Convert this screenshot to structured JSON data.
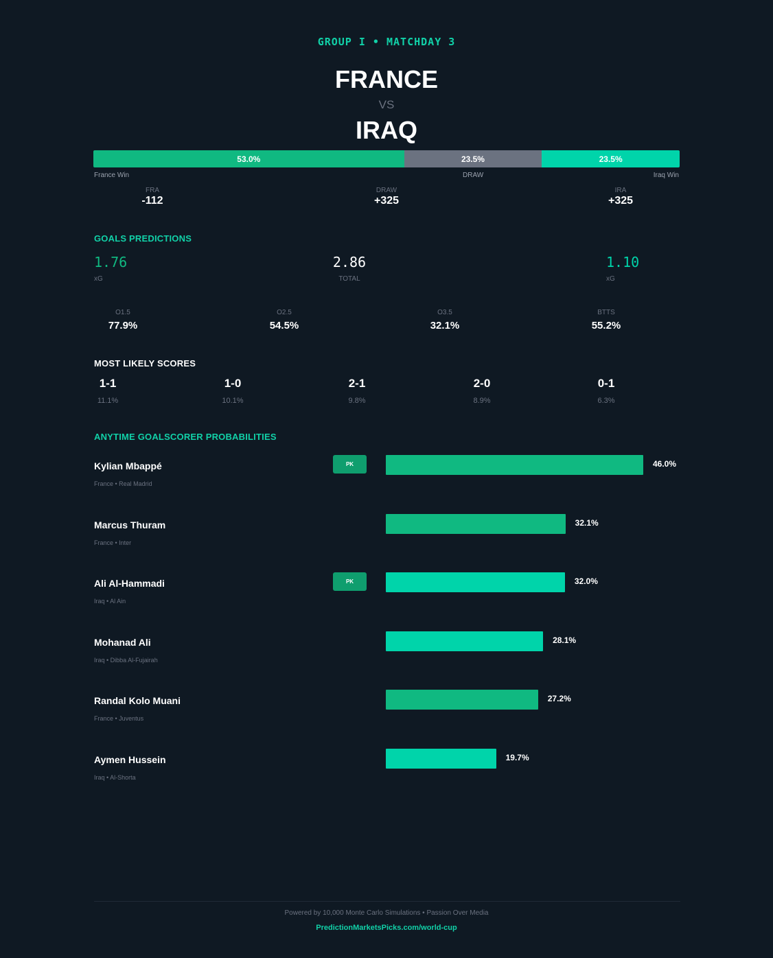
{
  "header": {
    "subtitle": "GROUP I  •  MATCHDAY 3",
    "team_home": "FRANCE",
    "vs": "VS",
    "team_away": "IRAQ"
  },
  "outcome": {
    "home_pct": 53.0,
    "draw_pct": 23.5,
    "away_pct": 23.5,
    "home_label": "53.0%",
    "draw_label": "23.5%",
    "away_label": "23.5%",
    "home_caption": "France Win",
    "draw_caption": "DRAW",
    "away_caption": "Iraq Win"
  },
  "odds": {
    "home_key": "FRA",
    "home_val": "-112",
    "draw_key": "DRAW",
    "draw_val": "+325",
    "away_key": "IRA",
    "away_val": "+325"
  },
  "goals": {
    "heading": "GOALS PREDICTIONS",
    "home_xg": "1.76",
    "home_xg_label": "xG",
    "total": "2.86",
    "total_label": "TOTAL",
    "away_xg": "1.10",
    "away_xg_label": "xG",
    "markets": [
      {
        "key": "O1.5",
        "val": "77.9%"
      },
      {
        "key": "O2.5",
        "val": "54.5%"
      },
      {
        "key": "O3.5",
        "val": "32.1%"
      },
      {
        "key": "BTTS",
        "val": "55.2%"
      }
    ]
  },
  "scores": {
    "heading": "MOST LIKELY SCORES",
    "items": [
      {
        "score": "1-1",
        "pct": "11.1%"
      },
      {
        "score": "1-0",
        "pct": "10.1%"
      },
      {
        "score": "2-1",
        "pct": "9.8%"
      },
      {
        "score": "2-0",
        "pct": "8.9%"
      },
      {
        "score": "0-1",
        "pct": "6.3%"
      }
    ]
  },
  "scorers": {
    "heading": "ANYTIME GOALSCORER PROBABILITIES",
    "pk_label": "PK",
    "players": [
      {
        "name": "Kylian Mbappé",
        "info": "France  •  Real Madrid",
        "pct": 46.0,
        "pct_label": "46.0%",
        "team": "fra",
        "pk": true
      },
      {
        "name": "Marcus Thuram",
        "info": "France  •  Inter",
        "pct": 32.1,
        "pct_label": "32.1%",
        "team": "fra",
        "pk": false
      },
      {
        "name": "Ali Al-Hammadi",
        "info": "Iraq  •  Al Ain",
        "pct": 32.0,
        "pct_label": "32.0%",
        "team": "ira",
        "pk": true
      },
      {
        "name": "Mohanad Ali",
        "info": "Iraq  •  Dibba Al-Fujairah",
        "pct": 28.1,
        "pct_label": "28.1%",
        "team": "ira",
        "pk": false
      },
      {
        "name": "Randal Kolo Muani",
        "info": "France  •  Juventus",
        "pct": 27.2,
        "pct_label": "27.2%",
        "team": "fra",
        "pk": false
      },
      {
        "name": "Aymen Hussein",
        "info": "Iraq  •  Al-Shorta",
        "pct": 19.7,
        "pct_label": "19.7%",
        "team": "ira",
        "pk": false
      }
    ]
  },
  "footer": {
    "note": "Powered by 10,000 Monte Carlo Simulations  •  Passion Over Media",
    "link": "PredictionMarketsPicks.com/world-cup"
  },
  "colors": {
    "background": "#0f1923",
    "accent": "#11d1a8",
    "france": "#10b981",
    "iraq": "#00d4aa",
    "draw": "#6b7280"
  }
}
